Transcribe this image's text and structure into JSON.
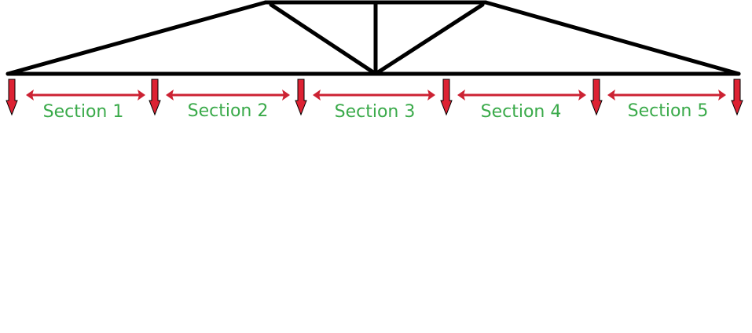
{
  "colors": {
    "truss": "#000000",
    "load_arrow": "#dd2233",
    "span_arrow": "#cc2233",
    "label": "#3aaa4a",
    "background": "#ffffff"
  },
  "icons": {
    "load": "downward-load-arrow-icon",
    "span": "double-headed-span-arrow-icon"
  },
  "sections": [
    {
      "label": "Section 1"
    },
    {
      "label": "Section 2"
    },
    {
      "label": "Section 3"
    },
    {
      "label": "Section 4"
    },
    {
      "label": "Section 5"
    }
  ]
}
